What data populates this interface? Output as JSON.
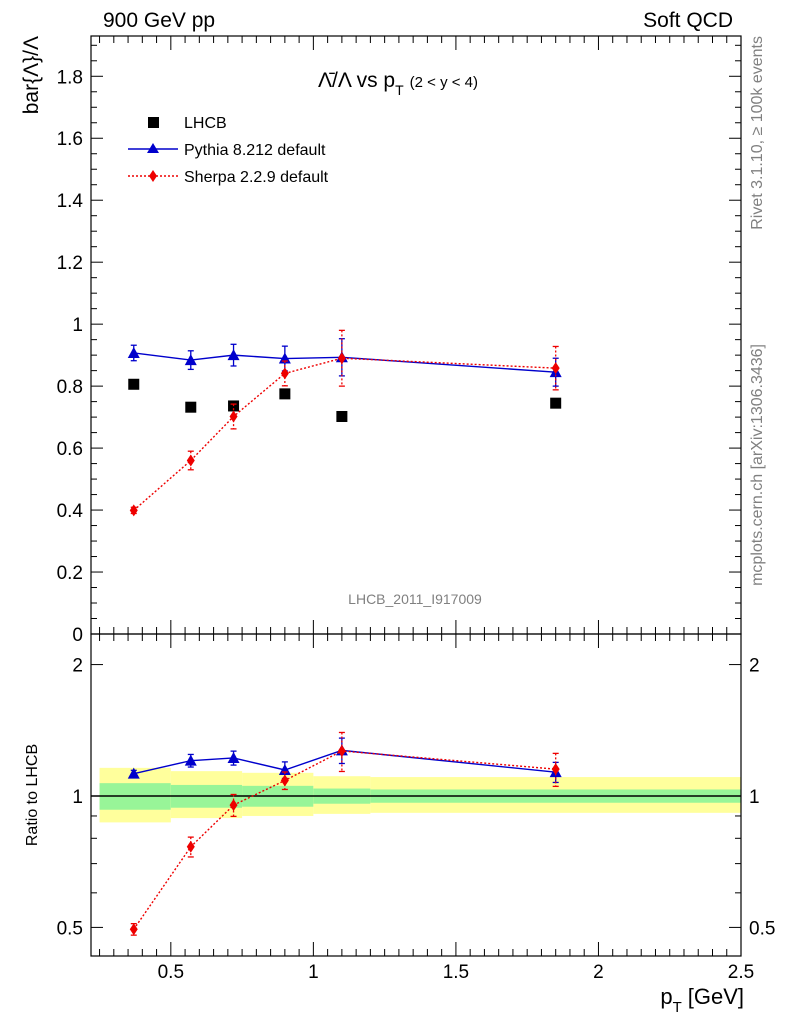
{
  "header": {
    "left": "900 GeV pp",
    "right": "Soft QCD"
  },
  "side_labels": {
    "rivet": "Rivet 3.1.10, ≥ 100k events",
    "mcplots": "mcplots.cern.ch [arXiv:1306.3436]"
  },
  "watermark": "LHCB_2011_I917009",
  "colors": {
    "lhcb": "#000000",
    "pythia": "#0000cc",
    "sherpa": "#ee0000",
    "band_inner": "#98f598",
    "band_outer": "#ffff9c"
  },
  "chart_data": [
    {
      "type": "scatter",
      "title_main": "Λ̄/Λ vs p",
      "title_sub": "T",
      "title_range": "(2 < y < 4)",
      "xlabel": "",
      "ylabel": "bar{Λ}/Λ",
      "xlim": [
        0.22,
        2.5
      ],
      "ylim": [
        0,
        1.93
      ],
      "yticks": [
        0,
        0.2,
        0.4,
        0.6,
        0.8,
        1,
        1.2,
        1.4,
        1.6,
        1.8
      ],
      "ytick_labels": [
        "0",
        "0.2",
        "0.4",
        "0.6",
        "0.8",
        "1",
        "1.2",
        "1.4",
        "1.6",
        "1.8"
      ],
      "legend": {
        "position": "top-left",
        "entries": [
          "LHCB",
          "Pythia 8.212 default",
          "Sherpa 2.2.9 default"
        ]
      },
      "series": [
        {
          "name": "LHCB",
          "style": "marker",
          "x": [
            0.37,
            0.57,
            0.72,
            0.9,
            1.1,
            1.85
          ],
          "values": [
            0.806,
            0.732,
            0.736,
            0.775,
            0.702,
            0.745
          ],
          "err": [
            0.01,
            0.01,
            0.01,
            0.01,
            0.01,
            0.01
          ]
        },
        {
          "name": "Pythia 8.212 default",
          "style": "line",
          "x": [
            0.37,
            0.57,
            0.72,
            0.9,
            1.1,
            1.85
          ],
          "values": [
            0.907,
            0.884,
            0.9,
            0.889,
            0.893,
            0.845
          ],
          "err": [
            0.025,
            0.03,
            0.035,
            0.04,
            0.06,
            0.045
          ]
        },
        {
          "name": "Sherpa 2.2.9 default",
          "style": "dotted",
          "x": [
            0.37,
            0.57,
            0.72,
            0.9,
            1.1,
            1.85
          ],
          "values": [
            0.399,
            0.56,
            0.702,
            0.841,
            0.89,
            0.858
          ],
          "err": [
            0.01,
            0.03,
            0.04,
            0.04,
            0.09,
            0.07
          ]
        }
      ]
    },
    {
      "type": "scatter",
      "xlabel_main": "p",
      "xlabel_sub": "T",
      "xlabel_unit": "[GeV]",
      "ylabel": "Ratio to LHCB",
      "xlim": [
        0.22,
        2.5
      ],
      "ylim": [
        0.43,
        2.35
      ],
      "yscale": "log",
      "xticks": [
        0.5,
        1,
        1.5,
        2,
        2.5
      ],
      "xtick_labels": [
        "0.5",
        "1",
        "1.5",
        "2",
        "2.5"
      ],
      "yticks": [
        0.5,
        1,
        2
      ],
      "ytick_labels": [
        "0.5",
        "1",
        "2"
      ],
      "reference_bands": {
        "bins": [
          [
            0.25,
            0.5
          ],
          [
            0.5,
            0.75
          ],
          [
            0.75,
            1.0
          ],
          [
            1.0,
            1.2
          ],
          [
            1.2,
            2.5
          ]
        ],
        "inner": [
          [
            0.93,
            1.07
          ],
          [
            0.94,
            1.06
          ],
          [
            0.945,
            1.055
          ],
          [
            0.96,
            1.04
          ],
          [
            0.965,
            1.035
          ]
        ],
        "outer": [
          [
            0.87,
            1.16
          ],
          [
            0.89,
            1.14
          ],
          [
            0.9,
            1.13
          ],
          [
            0.91,
            1.11
          ],
          [
            0.915,
            1.105
          ]
        ]
      },
      "series": [
        {
          "name": "Pythia 8.212 default",
          "style": "line",
          "x": [
            0.37,
            0.57,
            0.72,
            0.9,
            1.1,
            1.85
          ],
          "values": [
            1.125,
            1.205,
            1.222,
            1.147,
            1.272,
            1.134
          ],
          "err": [
            0.02,
            0.04,
            0.045,
            0.05,
            0.085,
            0.06
          ]
        },
        {
          "name": "Sherpa 2.2.9 default",
          "style": "dotted",
          "x": [
            0.37,
            0.57,
            0.72,
            0.9,
            1.1,
            1.85
          ],
          "values": [
            0.495,
            0.765,
            0.953,
            1.085,
            1.268,
            1.152
          ],
          "err": [
            0.015,
            0.04,
            0.055,
            0.05,
            0.13,
            0.1
          ]
        }
      ]
    }
  ]
}
